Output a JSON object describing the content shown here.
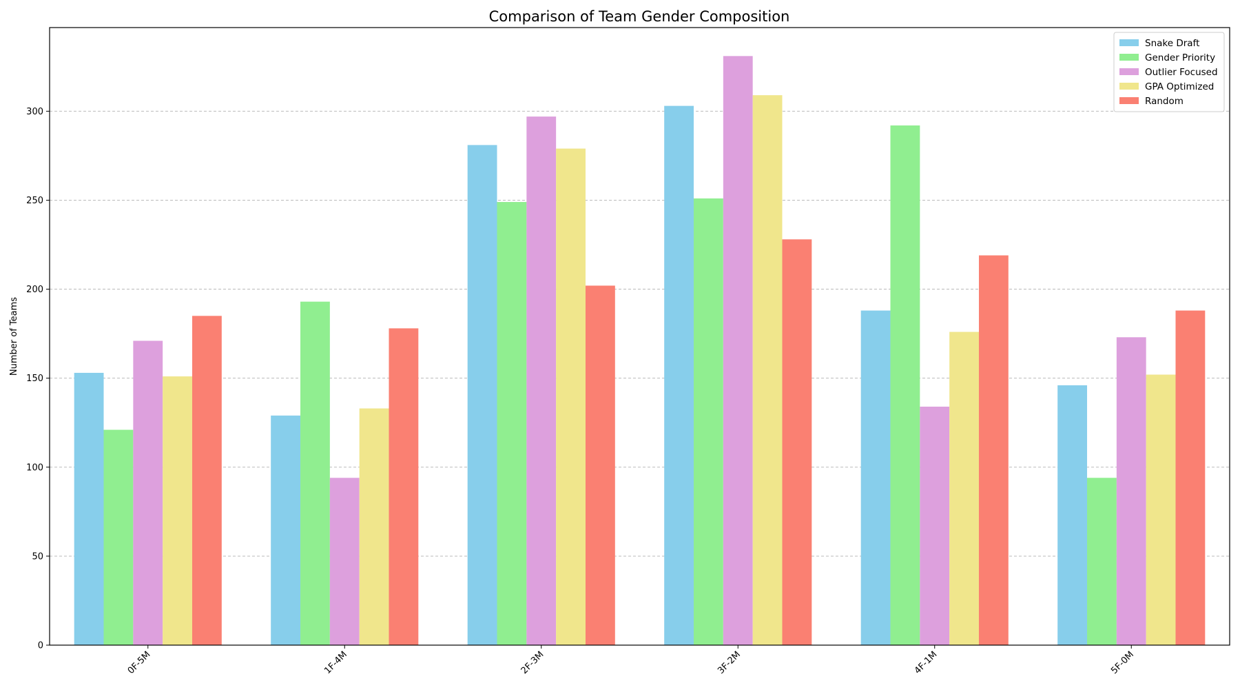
{
  "chart_data": {
    "type": "bar",
    "title": "Comparison of Team Gender Composition",
    "xlabel": "",
    "ylabel": "Number of Teams",
    "ylim": [
      0,
      347
    ],
    "yticks": [
      0,
      50,
      100,
      150,
      200,
      250,
      300
    ],
    "grid": "y-dashed",
    "legend_position": "top-right",
    "categories": [
      "0F-5M",
      "1F-4M",
      "2F-3M",
      "3F-2M",
      "4F-1M",
      "5F-0M"
    ],
    "series": [
      {
        "name": "Snake Draft",
        "color": "#87ceeb",
        "values": [
          153,
          129,
          281,
          303,
          188,
          146
        ]
      },
      {
        "name": "Gender Priority",
        "color": "#90ee90",
        "values": [
          121,
          193,
          249,
          251,
          292,
          94
        ]
      },
      {
        "name": "Outlier Focused",
        "color": "#dda0dd",
        "values": [
          171,
          94,
          297,
          331,
          134,
          173
        ]
      },
      {
        "name": "GPA Optimized",
        "color": "#f0e68c",
        "values": [
          151,
          133,
          279,
          309,
          176,
          152
        ]
      },
      {
        "name": "Random",
        "color": "#fa8072",
        "values": [
          185,
          178,
          202,
          228,
          219,
          188
        ]
      }
    ]
  }
}
